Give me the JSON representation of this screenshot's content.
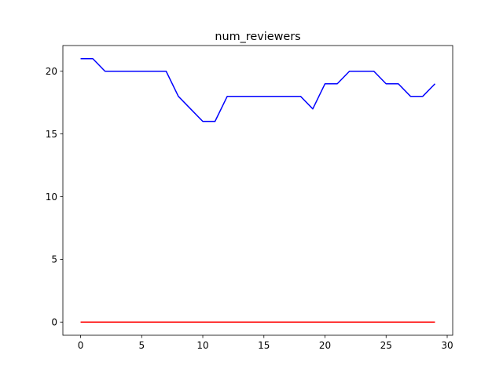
{
  "chart_data": {
    "type": "line",
    "title": "num_reviewers",
    "xlabel": "",
    "ylabel": "",
    "xlim": [
      -1.45,
      30.45
    ],
    "ylim": [
      -1.05,
      22.05
    ],
    "xticks": [
      0,
      5,
      10,
      15,
      20,
      25,
      30
    ],
    "yticks": [
      0,
      5,
      10,
      15,
      20
    ],
    "grid": false,
    "series": [
      {
        "color": "#0000ff",
        "x": [
          0,
          1,
          2,
          3,
          4,
          5,
          6,
          7,
          8,
          9,
          10,
          11,
          12,
          13,
          14,
          15,
          16,
          17,
          18,
          19,
          20,
          21,
          22,
          23,
          24,
          25,
          26,
          27,
          28,
          29
        ],
        "y": [
          21,
          21,
          20,
          20,
          20,
          20,
          20,
          20,
          18,
          17,
          16,
          16,
          18,
          18,
          18,
          18,
          18,
          18,
          18,
          17,
          19,
          19,
          20,
          20,
          20,
          19,
          19,
          18,
          18,
          19
        ]
      },
      {
        "color": "#ff0000",
        "x": [
          0,
          1,
          2,
          3,
          4,
          5,
          6,
          7,
          8,
          9,
          10,
          11,
          12,
          13,
          14,
          15,
          16,
          17,
          18,
          19,
          20,
          21,
          22,
          23,
          24,
          25,
          26,
          27,
          28,
          29
        ],
        "y": [
          0,
          0,
          0,
          0,
          0,
          0,
          0,
          0,
          0,
          0,
          0,
          0,
          0,
          0,
          0,
          0,
          0,
          0,
          0,
          0,
          0,
          0,
          0,
          0,
          0,
          0,
          0,
          0,
          0,
          0
        ]
      }
    ]
  }
}
